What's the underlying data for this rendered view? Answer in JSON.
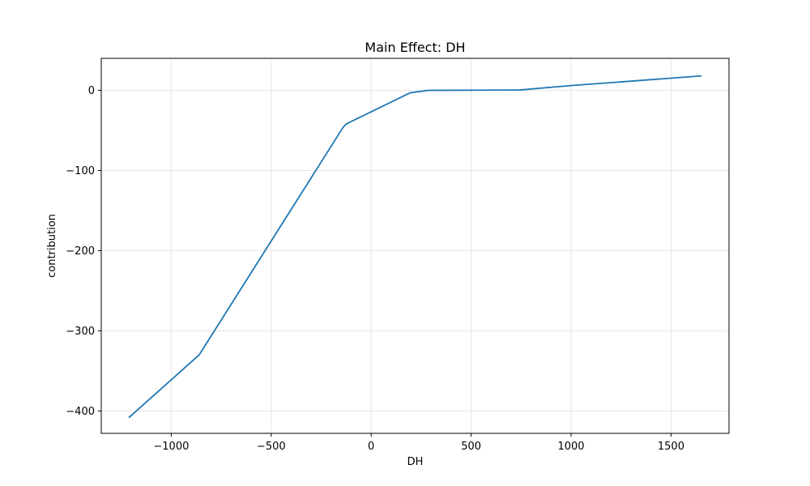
{
  "chart_data": {
    "type": "line",
    "title": "Main Effect: DH",
    "xlabel": "DH",
    "ylabel": "contribution",
    "xlim": [
      -1350,
      1790
    ],
    "ylim": [
      -428,
      40
    ],
    "xticks": [
      -1000,
      -500,
      0,
      500,
      1000,
      1500
    ],
    "xtick_labels": [
      "−1000",
      "−500",
      "0",
      "500",
      "1000",
      "1500"
    ],
    "yticks": [
      -400,
      -300,
      -200,
      -100,
      0
    ],
    "ytick_labels": [
      "−400",
      "−300",
      "−200",
      "−100",
      "0"
    ],
    "grid": true,
    "series": [
      {
        "color": "#1f77b4",
        "x": [
          -1210,
          -860,
          -140,
          -125,
          195,
          285,
          745,
          1000,
          1650
        ],
        "y": [
          -408,
          -330,
          -46,
          -42,
          -3,
          0,
          0.5,
          6,
          18
        ]
      }
    ]
  }
}
